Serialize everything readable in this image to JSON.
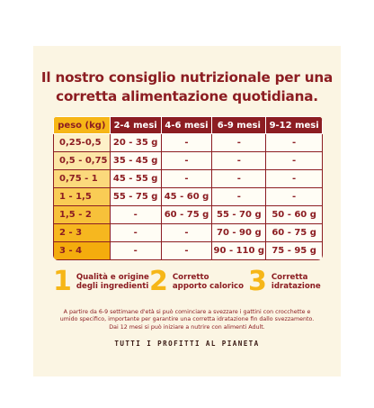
{
  "title_line1": "Il nostro consiglio nutrizionale per una",
  "title_line2": "corretta alimentazione quotidiana.",
  "colors": {
    "brand_red": "#8c1d22",
    "accent_yellow": "#f6b617",
    "card_bg": "#fbf5e3"
  },
  "table": {
    "headers": [
      "peso (kg)",
      "2-4 mesi",
      "4-6 mesi",
      "6-9 mesi",
      "9-12 mesi"
    ],
    "rows": [
      {
        "weight": "0,25-0,5",
        "cells": [
          "20 - 35 g",
          "-",
          "-",
          "-"
        ]
      },
      {
        "weight": "0,5 - 0,75",
        "cells": [
          "35 - 45 g",
          "-",
          "-",
          "-"
        ]
      },
      {
        "weight": "0,75 - 1",
        "cells": [
          "45 - 55 g",
          "-",
          "-",
          "-"
        ]
      },
      {
        "weight": "1 - 1,5",
        "cells": [
          "55 - 75 g",
          "45 - 60 g",
          "-",
          "-"
        ]
      },
      {
        "weight": "1,5 - 2",
        "cells": [
          "-",
          "60 - 75 g",
          "55 - 70 g",
          "50 - 60 g"
        ]
      },
      {
        "weight": "2 - 3",
        "cells": [
          "-",
          "-",
          "70 - 90 g",
          "60 - 75 g"
        ]
      },
      {
        "weight": "3 - 4",
        "cells": [
          "-",
          "-",
          "90 - 110 g",
          "75 - 95 g"
        ]
      }
    ],
    "row_fill_levels": [
      "#fdf0c8",
      "#fce6a6",
      "#fbd97c",
      "#f9cc55",
      "#f7c13a",
      "#f6b71f",
      "#f4ac0d"
    ]
  },
  "features": [
    {
      "number": "1",
      "line1": "Qualità e origine",
      "line2": "degli ingredienti"
    },
    {
      "number": "2",
      "line1": "Corretto",
      "line2": "apporto calorico"
    },
    {
      "number": "3",
      "line1": "Corretta",
      "line2": "idratazione"
    }
  ],
  "note_lines": [
    "A partire da 6-9 settimane d'età si può cominciare a svezzare i gattini con crocchette e",
    "umido specifico, importante per garantire una corretta idratazione fin dallo svezzamento.",
    "Dai 12 mesi si può iniziare a nutrire con alimenti Adult."
  ],
  "footer": "TUTTI I PROFITTI AL PIANETA"
}
